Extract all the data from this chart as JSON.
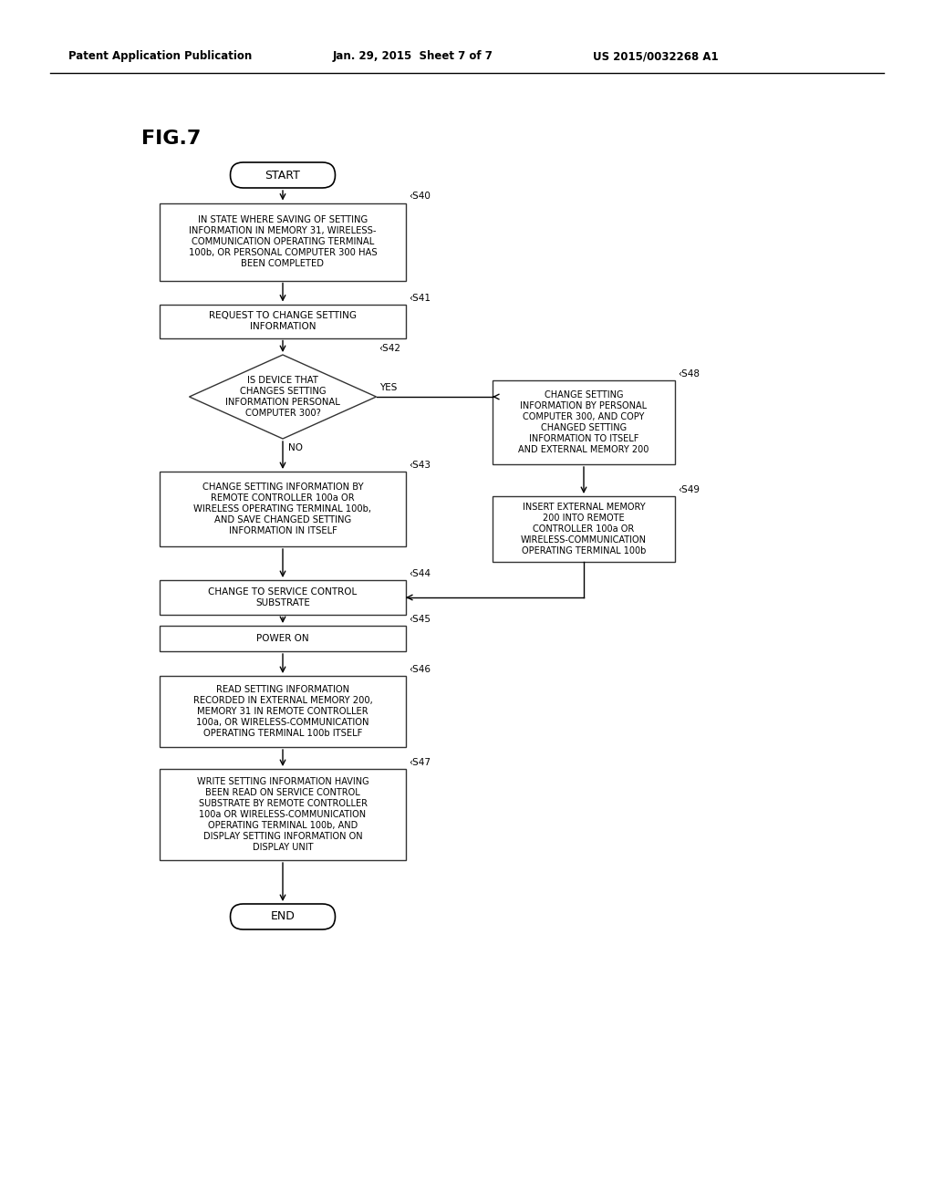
{
  "bg_color": "#ffffff",
  "text_color": "#000000",
  "header_left": "Patent Application Publication",
  "header_mid": "Jan. 29, 2015  Sheet 7 of 7",
  "header_right": "US 2015/0032268 A1",
  "fig_label": "FIG.7",
  "start_label": "START",
  "end_label": "END",
  "s40": "IN STATE WHERE SAVING OF SETTING\nINFORMATION IN MEMORY 31, WIRELESS-\nCOMMUNICATION OPERATING TERMINAL\n100b, OR PERSONAL COMPUTER 300 HAS\nBEEN COMPLETED",
  "s41": "REQUEST TO CHANGE SETTING\nINFORMATION",
  "s42": "IS DEVICE THAT\nCHANGES SETTING\nINFORMATION PERSONAL\nCOMPUTER 300?",
  "s43": "CHANGE SETTING INFORMATION BY\nREMOTE CONTROLLER 100a OR\nWIRELESS OPERATING TERMINAL 100b,\nAND SAVE CHANGED SETTING\nINFORMATION IN ITSELF",
  "s44": "CHANGE TO SERVICE CONTROL\nSUBSTRATE",
  "s45": "POWER ON",
  "s46": "READ SETTING INFORMATION\nRECORDED IN EXTERNAL MEMORY 200,\nMEMORY 31 IN REMOTE CONTROLLER\n100a, OR WIRELESS-COMMUNICATION\nOPERATING TERMINAL 100b ITSELF",
  "s47": "WRITE SETTING INFORMATION HAVING\nBEEN READ ON SERVICE CONTROL\nSUBSTRATE BY REMOTE CONTROLLER\n100a OR WIRELESS-COMMUNICATION\nOPERATING TERMINAL 100b, AND\nDISPLAY SETTING INFORMATION ON\nDISPLAY UNIT",
  "s48": "CHANGE SETTING\nINFORMATION BY PERSONAL\nCOMPUTER 300, AND COPY\nCHANGED SETTING\nINFORMATION TO ITSELF\nAND EXTERNAL MEMORY 200",
  "s49": "INSERT EXTERNAL MEMORY\n200 INTO REMOTE\nCONTROLLER 100a OR\nWIRELESS-COMMUNICATION\nOPERATING TERMINAL 100b"
}
